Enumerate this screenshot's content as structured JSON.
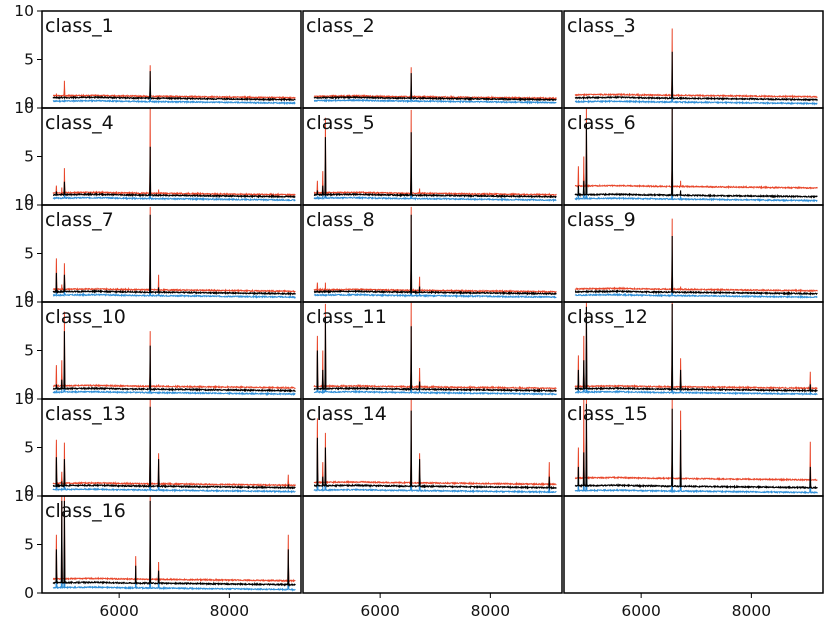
{
  "colors": {
    "upper": "#e8462a",
    "median": "#000000",
    "lower": "#2f8fd8"
  },
  "chart_data": {
    "type": "line",
    "layout": {
      "rows": 6,
      "cols": 3,
      "filled_panels": 16
    },
    "x_ticks": [
      6000,
      8000
    ],
    "y_ticks": [
      0,
      5,
      10
    ],
    "xlim": [
      4600,
      9300
    ],
    "ylim": [
      0,
      10
    ],
    "grid": false,
    "continuum": {
      "x": [
        4800,
        5200,
        5600,
        6000,
        6400,
        6800,
        7200,
        7600,
        8000,
        8400,
        8800,
        9200
      ],
      "y": [
        1.05,
        1.08,
        1.1,
        1.05,
        1.02,
        1.0,
        0.98,
        0.95,
        0.93,
        0.9,
        0.88,
        0.85
      ]
    },
    "emission_lines": {
      "x": [
        4861,
        4959,
        5007,
        6300,
        6563,
        6716,
        9069
      ]
    },
    "panels": [
      {
        "label": "class_1",
        "median_peaks": [
          1.0,
          0.5,
          1.2,
          0.0,
          3.8,
          0.5,
          0.2
        ],
        "upper_peaks": [
          1.5,
          1.0,
          2.8,
          0.2,
          4.4,
          0.9,
          0.5
        ],
        "upper_offset": 0.2,
        "lower_offset": -0.35
      },
      {
        "label": "class_2",
        "median_peaks": [
          0.6,
          0.3,
          0.5,
          0.0,
          3.6,
          0.4,
          0.2
        ],
        "upper_peaks": [
          0.9,
          0.5,
          0.8,
          0.2,
          4.2,
          0.7,
          0.5
        ],
        "upper_offset": 0.15,
        "lower_offset": -0.3
      },
      {
        "label": "class_3",
        "median_peaks": [
          0.6,
          0.4,
          0.6,
          0.1,
          5.8,
          0.6,
          0.2
        ],
        "upper_peaks": [
          1.0,
          0.6,
          1.0,
          0.3,
          8.2,
          1.3,
          0.6
        ],
        "upper_offset": 0.3,
        "lower_offset": -0.4
      },
      {
        "label": "class_4",
        "median_peaks": [
          1.4,
          1.2,
          2.4,
          0.2,
          6.0,
          0.8,
          0.2
        ],
        "upper_peaks": [
          2.0,
          1.8,
          3.8,
          0.4,
          10.0,
          1.6,
          0.5
        ],
        "upper_offset": 0.2,
        "lower_offset": -0.35
      },
      {
        "label": "class_5",
        "median_peaks": [
          1.5,
          2.0,
          7.0,
          0.2,
          7.5,
          0.9,
          0.3
        ],
        "upper_peaks": [
          2.5,
          3.5,
          9.0,
          0.4,
          9.8,
          1.7,
          0.7
        ],
        "upper_offset": 0.2,
        "lower_offset": -0.35
      },
      {
        "label": "class_6",
        "median_peaks": [
          2.0,
          2.5,
          8.5,
          0.3,
          10.0,
          1.5,
          0.4
        ],
        "upper_peaks": [
          4.0,
          5.0,
          10.0,
          0.5,
          10.0,
          2.5,
          1.2
        ],
        "upper_offset": 0.9,
        "lower_offset": -0.4
      },
      {
        "label": "class_7",
        "median_peaks": [
          3.0,
          1.2,
          2.8,
          0.2,
          9.0,
          1.5,
          0.3
        ],
        "upper_peaks": [
          4.5,
          1.8,
          4.0,
          0.4,
          9.8,
          2.8,
          0.6
        ],
        "upper_offset": 0.25,
        "lower_offset": -0.35
      },
      {
        "label": "class_8",
        "median_peaks": [
          1.2,
          0.8,
          1.2,
          0.2,
          9.0,
          1.6,
          0.3
        ],
        "upper_peaks": [
          2.0,
          1.2,
          2.0,
          0.4,
          9.8,
          2.6,
          0.6
        ],
        "upper_offset": 0.2,
        "lower_offset": -0.35
      },
      {
        "label": "class_9",
        "median_peaks": [
          0.8,
          0.5,
          0.8,
          0.1,
          6.8,
          0.9,
          0.2
        ],
        "upper_peaks": [
          1.3,
          0.8,
          1.3,
          0.3,
          8.6,
          1.6,
          0.6
        ],
        "upper_offset": 0.3,
        "lower_offset": -0.35
      },
      {
        "label": "class_10",
        "median_peaks": [
          1.5,
          2.0,
          7.0,
          0.2,
          5.5,
          0.6,
          0.2
        ],
        "upper_peaks": [
          3.5,
          4.0,
          9.0,
          0.4,
          7.0,
          1.5,
          0.6
        ],
        "upper_offset": 0.3,
        "lower_offset": -0.35
      },
      {
        "label": "class_11",
        "median_peaks": [
          5.0,
          3.0,
          8.5,
          0.3,
          7.5,
          1.8,
          0.4
        ],
        "upper_peaks": [
          6.5,
          5.0,
          9.8,
          0.6,
          10.0,
          3.2,
          0.8
        ],
        "upper_offset": 0.25,
        "lower_offset": -0.35
      },
      {
        "label": "class_12",
        "median_peaks": [
          3.0,
          4.0,
          9.5,
          0.6,
          9.8,
          3.0,
          1.5
        ],
        "upper_peaks": [
          4.5,
          6.5,
          10.0,
          1.0,
          10.0,
          4.2,
          2.8
        ],
        "upper_offset": 0.25,
        "lower_offset": -0.35
      },
      {
        "label": "class_13",
        "median_peaks": [
          4.0,
          1.5,
          3.8,
          0.3,
          9.2,
          3.8,
          1.2
        ],
        "upper_peaks": [
          5.8,
          2.5,
          5.5,
          0.6,
          10.0,
          4.4,
          2.2
        ],
        "upper_offset": 0.25,
        "lower_offset": -0.4
      },
      {
        "label": "class_14",
        "median_peaks": [
          6.0,
          2.0,
          5.0,
          0.4,
          8.8,
          3.8,
          2.0
        ],
        "upper_peaks": [
          8.0,
          3.5,
          6.5,
          0.8,
          10.0,
          4.4,
          3.5
        ],
        "upper_offset": 0.35,
        "lower_offset": -0.45
      },
      {
        "label": "class_15",
        "median_peaks": [
          3.0,
          4.5,
          9.5,
          0.6,
          9.0,
          6.8,
          3.0
        ],
        "upper_peaks": [
          5.0,
          10.0,
          10.0,
          1.5,
          10.0,
          8.8,
          5.6
        ],
        "upper_offset": 0.8,
        "lower_offset": -0.5
      },
      {
        "label": "class_16",
        "median_peaks": [
          4.5,
          9.5,
          9.5,
          2.8,
          9.5,
          2.3,
          4.5
        ],
        "upper_peaks": [
          6.0,
          10.0,
          10.0,
          3.8,
          10.0,
          3.2,
          6.0
        ],
        "upper_offset": 0.4,
        "lower_offset": -0.5
      }
    ]
  }
}
